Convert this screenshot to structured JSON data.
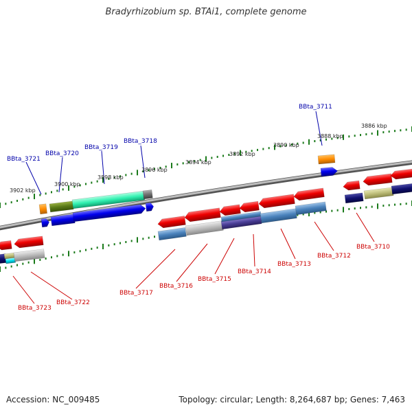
{
  "title": "Bradyrhizobium sp. BTAi1, complete genome",
  "footer": {
    "accession": "Accession: NC_009485",
    "summary": "Topology: circular; Length: 8,264,687 bp; Genes: 7,463"
  },
  "scale_labels": [
    "3902 kbp",
    "3900 kbp",
    "3898 kbp",
    "3896 kbp",
    "3894 kbp",
    "3892 kbp",
    "3890 kbp",
    "3888 kbp",
    "3886 kbp"
  ],
  "gene_labels_top": [
    "BBta_3721",
    "BBta_3720",
    "BBta_3719",
    "BBta_3718",
    "BBta_3711"
  ],
  "gene_labels_bottom": [
    "BBta_3723",
    "BBta_3722",
    "BBta_3717",
    "BBta_3716",
    "BBta_3715",
    "BBta_3714",
    "BBta_3713",
    "BBta_3712",
    "BBta_3710"
  ],
  "colors": {
    "top_label": "#0000aa",
    "bottom_label": "#cc0000",
    "tick": "#1a7a1a",
    "backbone": "#8a8a8a"
  }
}
